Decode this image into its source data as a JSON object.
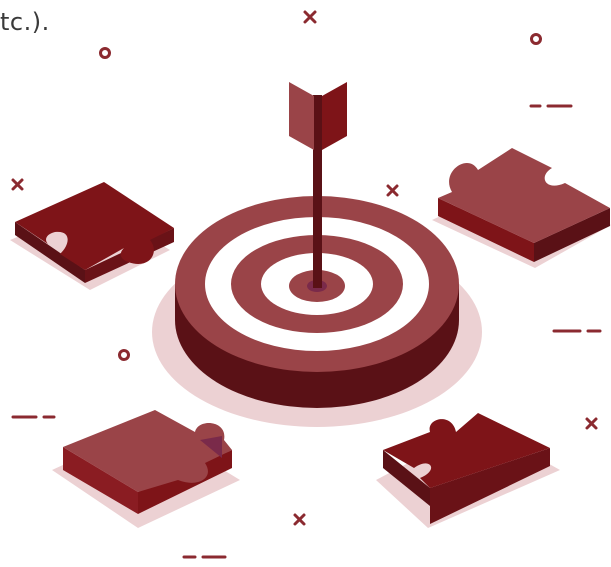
{
  "caption": {
    "text": "tc.)."
  },
  "colors": {
    "dark": "#5a1116",
    "mid": "#7e1418",
    "light": "#9a4448",
    "shadow": "#ecd1d3",
    "background": "#ffffff"
  },
  "icons": {
    "sparkle": "x-mark-icon",
    "circle": "ring-icon",
    "dash": "dash-line-icon"
  }
}
